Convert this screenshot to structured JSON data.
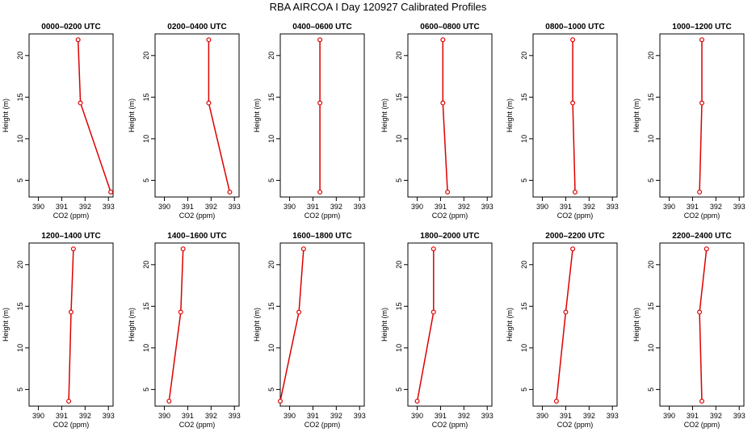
{
  "title": "RBA AIRCOA I  Day 120927  Calibrated Profiles",
  "chart_data": {
    "type": "line",
    "grid": false,
    "xlabel": "CO2 (ppm)",
    "ylabel": "Height (m)",
    "xlim": [
      389.6,
      393.2
    ],
    "ylim": [
      3,
      22.6
    ],
    "xticks": [
      390,
      391,
      392,
      393
    ],
    "yticks": [
      5,
      10,
      15,
      20
    ],
    "color": "#dd0000",
    "heights": [
      3.6,
      14.3,
      21.9
    ],
    "panels": [
      {
        "title": "0000–0200 UTC",
        "co2": [
          393.1,
          391.8,
          391.7
        ]
      },
      {
        "title": "0200–0400 UTC",
        "co2": [
          392.8,
          391.9,
          391.9
        ]
      },
      {
        "title": "0400–0600 UTC",
        "co2": [
          391.3,
          391.3,
          391.3
        ]
      },
      {
        "title": "0600–0800 UTC",
        "co2": [
          391.3,
          391.1,
          391.1
        ]
      },
      {
        "title": "0800–1000 UTC",
        "co2": [
          391.4,
          391.3,
          391.3
        ]
      },
      {
        "title": "1000–1200 UTC",
        "co2": [
          391.3,
          391.4,
          391.4
        ]
      },
      {
        "title": "1200–1400 UTC",
        "co2": [
          391.3,
          391.4,
          391.5
        ]
      },
      {
        "title": "1400–1600 UTC",
        "co2": [
          390.2,
          390.7,
          390.8
        ]
      },
      {
        "title": "1600–1800 UTC",
        "co2": [
          389.6,
          390.4,
          390.6
        ]
      },
      {
        "title": "1800–2000 UTC",
        "co2": [
          390.0,
          390.7,
          390.7
        ]
      },
      {
        "title": "2000–2200 UTC",
        "co2": [
          390.6,
          391.0,
          391.3
        ]
      },
      {
        "title": "2200–2400 UTC",
        "co2": [
          391.4,
          391.3,
          391.6
        ]
      }
    ]
  }
}
